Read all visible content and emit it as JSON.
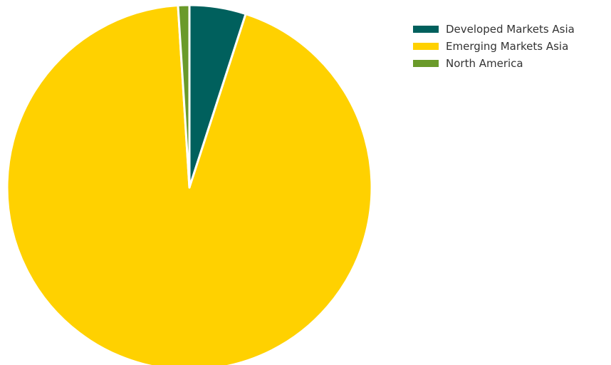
{
  "chart_data": {
    "type": "pie",
    "title": "",
    "start_angle_deg": -90,
    "direction": "clockwise",
    "legend_position": "top-right",
    "series": [
      {
        "slices": [
          {
            "label": "Developed Markets Asia",
            "value": 5.0,
            "color": "#00605d"
          },
          {
            "label": "Emerging Markets Asia",
            "value": 94.0,
            "color": "#ffd100"
          },
          {
            "label": "North America",
            "value": 1.0,
            "color": "#6a9a2a"
          }
        ]
      }
    ]
  }
}
